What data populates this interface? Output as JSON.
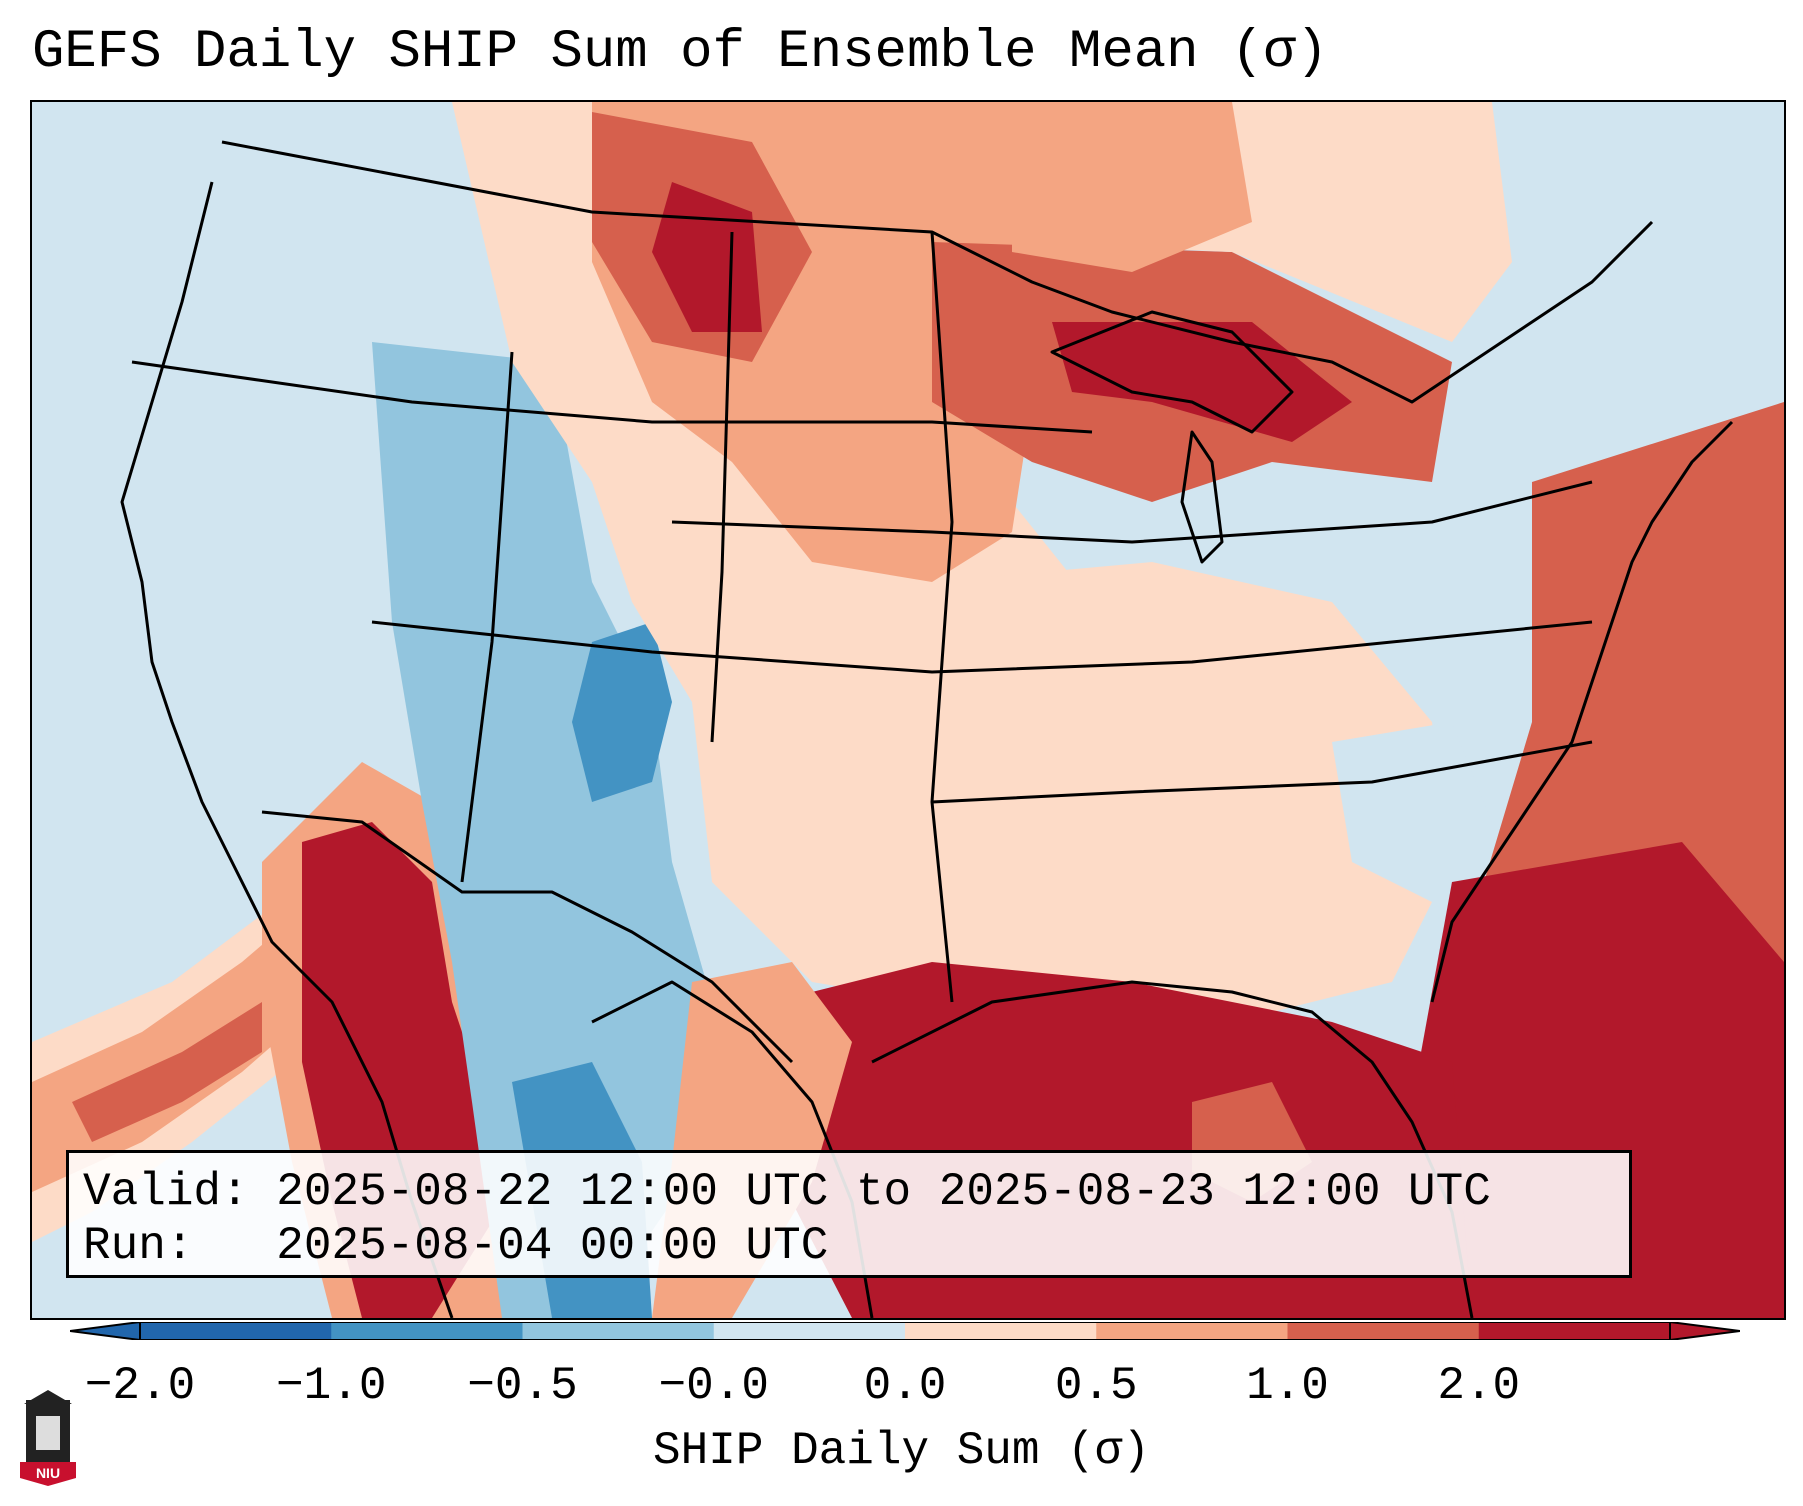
{
  "title": "GEFS Daily SHIP Sum of Ensemble Mean (σ)",
  "info": {
    "valid_label": "Valid:",
    "valid_value": "2025-08-22 12:00 UTC to 2025-08-23 12:00 UTC",
    "run_label": "Run:",
    "run_value": "2025-08-04 00:00 UTC"
  },
  "colorbar": {
    "label": "SHIP Daily Sum (σ)",
    "ticks": [
      "−2.0",
      "−1.0",
      "−0.5",
      "−0.0",
      "0.0",
      "0.5",
      "1.0",
      "2.0"
    ],
    "colors": [
      "#2166ac",
      "#4393c3",
      "#92c5de",
      "#d1e5f0",
      "#fddbc7",
      "#f4a582",
      "#d6604d",
      "#b2182b"
    ]
  },
  "logo": {
    "text": "NIU"
  }
}
